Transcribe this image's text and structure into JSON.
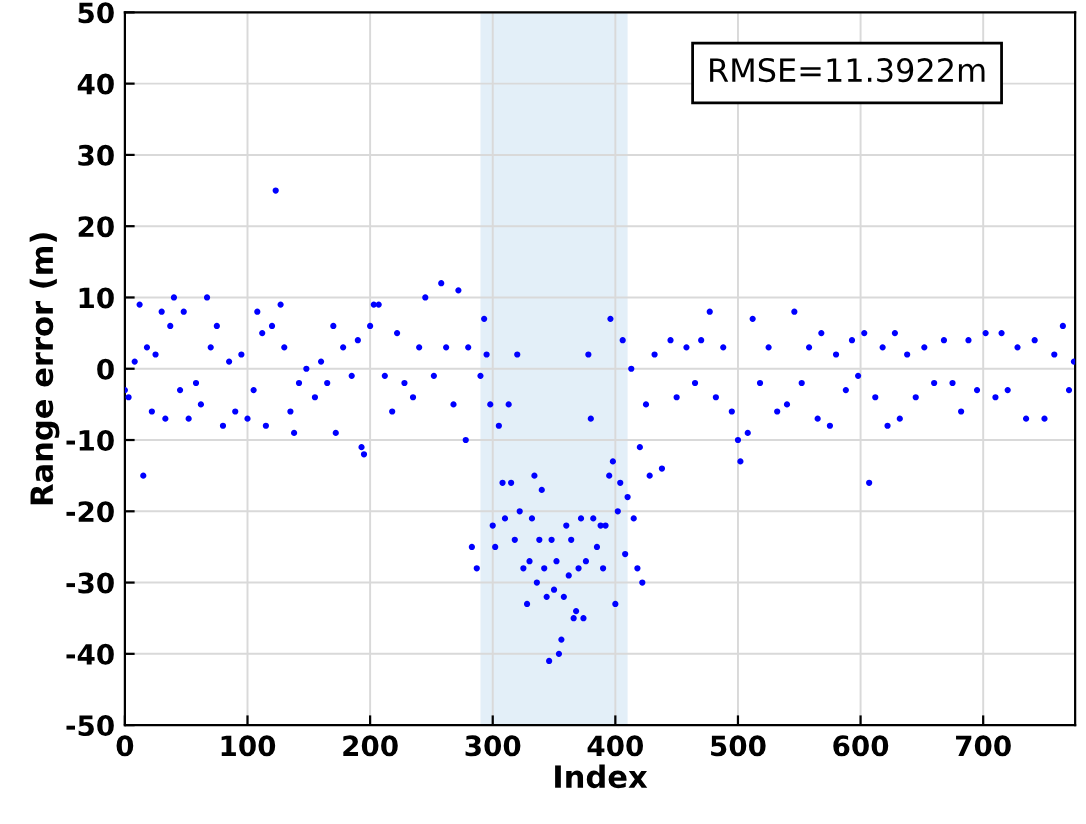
{
  "chart_data": {
    "type": "scatter",
    "xlabel": "Index",
    "ylabel": "Range error (m)",
    "annotations": [
      "RMSE=11.3922m"
    ],
    "xlim": [
      0,
      775
    ],
    "ylim": [
      -50,
      50
    ],
    "xticks": [
      0,
      100,
      200,
      300,
      400,
      500,
      600,
      700
    ],
    "yticks": [
      -50,
      -40,
      -30,
      -20,
      -10,
      0,
      10,
      20,
      30,
      40,
      50
    ],
    "grid": true,
    "marker": "circle",
    "bands": [
      {
        "axis": "x",
        "from": 290,
        "to": 410,
        "color": "#e3eff8"
      }
    ],
    "series": [
      {
        "color": "#0000ff",
        "x": [
          0,
          3,
          8,
          12,
          15,
          18,
          22,
          25,
          30,
          33,
          37,
          40,
          45,
          48,
          52,
          58,
          62,
          67,
          70,
          75,
          80,
          85,
          90,
          95,
          100,
          105,
          108,
          112,
          115,
          120,
          123,
          127,
          130,
          135,
          138,
          142,
          148,
          155,
          160,
          165,
          170,
          172,
          178,
          185,
          190,
          193,
          195,
          200,
          203,
          207,
          212,
          218,
          222,
          228,
          235,
          240,
          245,
          252,
          258,
          262,
          268,
          272,
          278,
          280,
          283,
          287,
          290,
          293,
          295,
          298,
          300,
          302,
          305,
          308,
          310,
          313,
          315,
          318,
          320,
          322,
          325,
          328,
          330,
          332,
          334,
          336,
          338,
          340,
          342,
          344,
          346,
          348,
          350,
          352,
          354,
          356,
          358,
          360,
          362,
          364,
          366,
          368,
          370,
          372,
          374,
          376,
          378,
          380,
          382,
          385,
          388,
          390,
          392,
          395,
          396,
          398,
          400,
          402,
          404,
          406,
          408,
          410,
          413,
          415,
          418,
          420,
          422,
          425,
          428,
          432,
          438,
          445,
          450,
          458,
          465,
          470,
          477,
          482,
          488,
          495,
          500,
          502,
          508,
          512,
          518,
          525,
          532,
          540,
          546,
          552,
          558,
          565,
          568,
          575,
          580,
          588,
          593,
          598,
          603,
          607,
          612,
          618,
          622,
          628,
          632,
          638,
          645,
          652,
          660,
          668,
          675,
          682,
          688,
          695,
          702,
          710,
          715,
          720,
          728,
          735,
          742,
          750,
          758,
          765,
          770,
          774
        ],
        "values": [
          -3,
          -4,
          1,
          9,
          -15,
          3,
          -6,
          2,
          8,
          -7,
          6,
          10,
          -3,
          8,
          -7,
          -2,
          -5,
          10,
          3,
          6,
          -8,
          1,
          -6,
          2,
          -7,
          -3,
          8,
          5,
          -8,
          6,
          25,
          9,
          3,
          -6,
          -9,
          -2,
          0,
          -4,
          1,
          -2,
          6,
          -9,
          3,
          -1,
          4,
          -11,
          -12,
          6,
          9,
          9,
          -1,
          -6,
          5,
          -2,
          -4,
          3,
          10,
          -1,
          12,
          3,
          -5,
          11,
          -10,
          3,
          -25,
          -28,
          -1,
          7,
          2,
          -5,
          -22,
          -25,
          -8,
          -16,
          -21,
          -5,
          -16,
          -24,
          2,
          -20,
          -28,
          -33,
          -27,
          -21,
          -15,
          -30,
          -24,
          -17,
          -28,
          -32,
          -41,
          -24,
          -31,
          -27,
          -40,
          -38,
          -32,
          -22,
          -29,
          -24,
          -35,
          -34,
          -28,
          -21,
          -35,
          -27,
          2,
          -7,
          -21,
          -25,
          -22,
          -28,
          -22,
          -15,
          7,
          -13,
          -33,
          -20,
          -16,
          4,
          -26,
          -18,
          0,
          -21,
          -28,
          -11,
          -30,
          -5,
          -15,
          2,
          -14,
          4,
          -4,
          3,
          -2,
          4,
          8,
          -4,
          3,
          -6,
          -10,
          -13,
          -9,
          7,
          -2,
          3,
          -6,
          -5,
          8,
          -2,
          3,
          -7,
          5,
          -8,
          2,
          -3,
          4,
          -1,
          5,
          -16,
          -4,
          3,
          -8,
          5,
          -7,
          2,
          -4,
          3,
          -2,
          4,
          -2,
          -6,
          4,
          -3,
          5,
          -4,
          5,
          -3,
          3,
          -7,
          4,
          -7,
          2,
          6,
          -3,
          1
        ]
      }
    ]
  }
}
